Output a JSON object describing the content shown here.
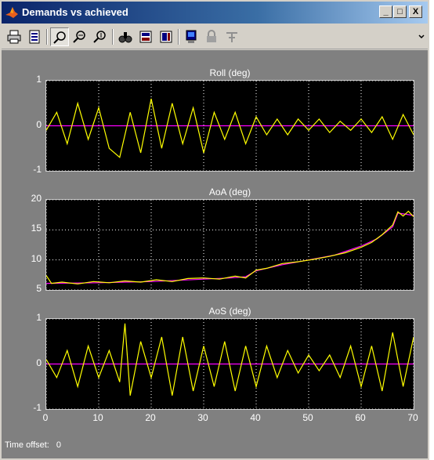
{
  "window": {
    "title": "Demands vs achieved",
    "minimize_label": "_",
    "maximize_label": "□",
    "close_label": "X",
    "colors": {
      "titlebar": "#0a246a",
      "trace_achieved": "#ffff00",
      "trace_demand": "#ff00ff",
      "axes_bg": "#000000",
      "figure_bg": "#808080"
    }
  },
  "toolbar": {
    "icons": [
      "print-icon",
      "print-preview-icon",
      "zoom-in-icon",
      "zoom-x-icon",
      "zoom-y-icon",
      "find-icon",
      "scale-to-fit-icon",
      "scope-params-icon",
      "floating-scope-icon",
      "lock-icon",
      "signal-selection-icon"
    ],
    "pressed": "zoom-in-icon"
  },
  "footer": {
    "label": "Time offset:",
    "value": "0"
  },
  "chart_data": [
    {
      "type": "line",
      "title": "Roll (deg)",
      "xlim": [
        0,
        70
      ],
      "ylim": [
        -1,
        1
      ],
      "xticks": [
        "0",
        "10",
        "20",
        "30",
        "40",
        "50",
        "60",
        "70"
      ],
      "yticks": [
        "1",
        "0",
        "-1"
      ],
      "grid": true,
      "series": [
        {
          "color": "#ff00ff",
          "description": "demand",
          "x": [
            0,
            70
          ],
          "values": [
            0,
            0
          ]
        },
        {
          "color": "#ffff00",
          "description": "achieved",
          "x": [
            0,
            2,
            4,
            6,
            8,
            10,
            12,
            14,
            16,
            18,
            20,
            22,
            24,
            26,
            28,
            30,
            32,
            34,
            36,
            38,
            40,
            42,
            44,
            46,
            48,
            50,
            52,
            54,
            56,
            58,
            60,
            62,
            64,
            66,
            68,
            70
          ],
          "values": [
            -0.1,
            0.3,
            -0.4,
            0.5,
            -0.3,
            0.4,
            -0.5,
            -0.7,
            0.3,
            -0.6,
            0.6,
            -0.5,
            0.5,
            -0.4,
            0.4,
            -0.6,
            0.3,
            -0.3,
            0.3,
            -0.4,
            0.2,
            -0.2,
            0.15,
            -0.2,
            0.15,
            -0.1,
            0.15,
            -0.15,
            0.1,
            -0.1,
            0.15,
            -0.15,
            0.2,
            -0.3,
            0.25,
            -0.2
          ]
        }
      ]
    },
    {
      "type": "line",
      "title": "AoA (deg)",
      "xlim": [
        0,
        70
      ],
      "ylim": [
        5,
        20
      ],
      "xticks": [
        "0",
        "10",
        "20",
        "30",
        "40",
        "50",
        "60",
        "70"
      ],
      "yticks": [
        "20",
        "15",
        "10",
        "5"
      ],
      "grid": true,
      "series": [
        {
          "color": "#ff00ff",
          "description": "demand",
          "x": [
            0,
            10,
            20,
            30,
            35,
            38,
            40,
            45,
            50,
            55,
            60,
            63,
            66,
            67,
            70
          ],
          "values": [
            6.1,
            6.2,
            6.4,
            6.8,
            7.0,
            7.2,
            8.2,
            9.2,
            10.0,
            10.8,
            12.3,
            13.5,
            15.5,
            17.8,
            17.4
          ]
        },
        {
          "color": "#ffff00",
          "description": "achieved",
          "x": [
            0,
            1,
            3,
            6,
            9,
            12,
            15,
            18,
            21,
            24,
            27,
            30,
            33,
            36,
            38,
            40,
            42,
            45,
            48,
            51,
            54,
            57,
            60,
            62,
            64,
            66,
            67,
            68,
            69,
            70
          ],
          "values": [
            7.4,
            6.1,
            6.3,
            6.0,
            6.4,
            6.2,
            6.5,
            6.3,
            6.7,
            6.4,
            6.9,
            7.0,
            6.8,
            7.3,
            7.0,
            8.3,
            8.6,
            9.4,
            9.7,
            10.1,
            10.6,
            11.2,
            12.1,
            12.9,
            14.2,
            15.8,
            18.0,
            17.3,
            18.1,
            17.2
          ]
        }
      ]
    },
    {
      "type": "line",
      "title": "AoS (deg)",
      "xlim": [
        0,
        70
      ],
      "ylim": [
        -1,
        1
      ],
      "xticks": [
        "0",
        "10",
        "20",
        "30",
        "40",
        "50",
        "60",
        "70"
      ],
      "yticks": [
        "1",
        "0",
        "-1"
      ],
      "grid": true,
      "series": [
        {
          "color": "#ff00ff",
          "description": "demand",
          "x": [
            0,
            70
          ],
          "values": [
            0,
            0
          ]
        },
        {
          "color": "#ffff00",
          "description": "achieved",
          "x": [
            0,
            2,
            4,
            6,
            8,
            10,
            12,
            14,
            15,
            16,
            18,
            20,
            22,
            24,
            26,
            28,
            30,
            32,
            34,
            36,
            38,
            40,
            42,
            44,
            46,
            48,
            50,
            52,
            54,
            56,
            58,
            60,
            62,
            64,
            66,
            68,
            70
          ],
          "values": [
            0.1,
            -0.3,
            0.3,
            -0.5,
            0.4,
            -0.3,
            0.3,
            -0.4,
            0.9,
            -0.7,
            0.5,
            -0.3,
            0.6,
            -0.7,
            0.6,
            -0.6,
            0.4,
            -0.5,
            0.5,
            -0.6,
            0.4,
            -0.5,
            0.4,
            -0.3,
            0.3,
            -0.2,
            0.2,
            -0.15,
            0.2,
            -0.3,
            0.4,
            -0.5,
            0.4,
            -0.6,
            0.7,
            -0.5,
            0.6
          ]
        }
      ]
    }
  ]
}
